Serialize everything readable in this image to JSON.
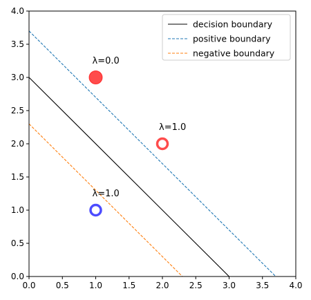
{
  "chart_data": {
    "type": "line",
    "title": "",
    "xlabel": "",
    "ylabel": "",
    "xlim": [
      0,
      4
    ],
    "ylim": [
      0,
      4
    ],
    "xticks": [
      0.0,
      0.5,
      1.0,
      1.5,
      2.0,
      2.5,
      3.0,
      3.5,
      4.0
    ],
    "yticks": [
      0.0,
      0.5,
      1.0,
      1.5,
      2.0,
      2.5,
      3.0,
      3.5,
      4.0
    ],
    "grid": false,
    "legend_position": "top-right",
    "series": [
      {
        "name": "decision boundary",
        "style": "solid",
        "color": "#000000",
        "x": [
          0,
          3
        ],
        "y": [
          3,
          0
        ]
      },
      {
        "name": "positive boundary",
        "style": "dashed",
        "color": "#1f77b4",
        "x": [
          0,
          3.7
        ],
        "y": [
          3.7,
          0
        ]
      },
      {
        "name": "negative boundary",
        "style": "dashed",
        "color": "#ff7f0e",
        "x": [
          0,
          2.3
        ],
        "y": [
          2.3,
          0
        ]
      }
    ],
    "points": [
      {
        "x": 1,
        "y": 3,
        "color": "#ff0000",
        "filled": true,
        "label": "λ=0.0"
      },
      {
        "x": 2,
        "y": 2,
        "color": "#ff0000",
        "filled": false,
        "label": "λ=1.0"
      },
      {
        "x": 1,
        "y": 1,
        "color": "#0000ff",
        "filled": false,
        "label": "λ=1.0"
      }
    ]
  }
}
